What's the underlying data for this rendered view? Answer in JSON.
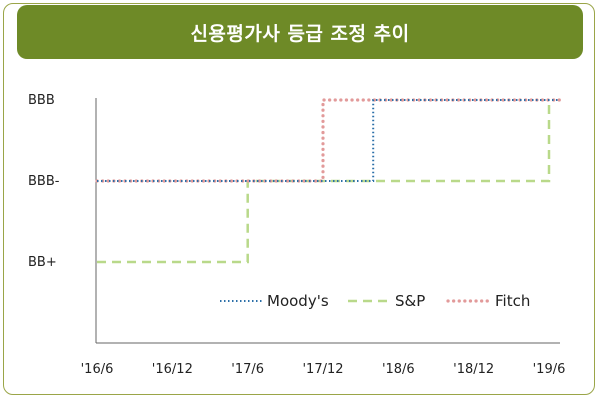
{
  "chart_data": {
    "type": "line",
    "title": "신용평가사 등급 조정 추이",
    "x_ticks": [
      "'16/6",
      "'16/12",
      "'17/6",
      "'17/12",
      "'18/6",
      "'18/12",
      "'19/6"
    ],
    "y_ticks": [
      "BB+",
      "BBB-",
      "BBB"
    ],
    "y_levels": {
      "BB+": 0,
      "BBB-": 1,
      "BBB": 2
    },
    "ylim": [
      0,
      2
    ],
    "grid": false,
    "legend_position": "bottom-right",
    "series": [
      {
        "name": "Moody's",
        "color": "#2b6fa8",
        "style": "dotted",
        "points": [
          [
            "2016-06",
            "BBB-"
          ],
          [
            "2018-04",
            "BBB-"
          ],
          [
            "2018-04",
            "BBB"
          ],
          [
            "2019-06",
            "BBB"
          ]
        ]
      },
      {
        "name": "S&P",
        "color": "#b9d98a",
        "style": "dashed",
        "points": [
          [
            "2016-06",
            "BB+"
          ],
          [
            "2017-06",
            "BB+"
          ],
          [
            "2017-06",
            "BBB-"
          ],
          [
            "2019-06",
            "BBB-"
          ],
          [
            "2019-06",
            "BBB"
          ]
        ]
      },
      {
        "name": "Fitch",
        "color": "#e29a9a",
        "style": "dotted-thick",
        "points": [
          [
            "2016-06",
            "BBB-"
          ],
          [
            "2017-12",
            "BBB-"
          ],
          [
            "2017-12",
            "BBB"
          ],
          [
            "2019-06",
            "BBB"
          ]
        ]
      }
    ]
  }
}
